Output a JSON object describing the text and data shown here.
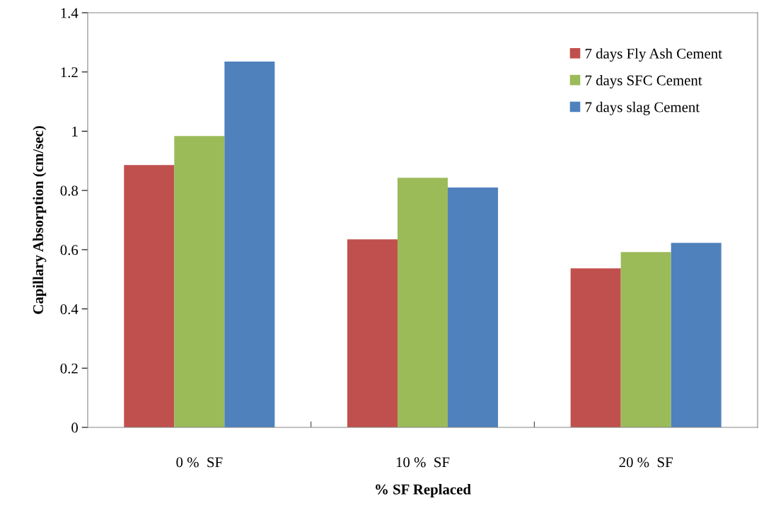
{
  "chart_data": {
    "type": "bar",
    "xlabel": "% SF Replaced",
    "ylabel": "Capillary Absorption (cm/sec)",
    "categories": [
      "0 %  SF",
      "10 %  SF",
      "20 %  SF"
    ],
    "series": [
      {
        "name": "7 days Fly Ash Cement",
        "color": "#c0504d",
        "values": [
          0.886,
          0.635,
          0.537
        ]
      },
      {
        "name": "7 days SFC Cement",
        "color": "#9bbb59",
        "values": [
          0.984,
          0.843,
          0.592
        ]
      },
      {
        "name": "7 days slag Cement",
        "color": "#4f81bd",
        "values": [
          1.235,
          0.81,
          0.623
        ]
      }
    ],
    "ylim": [
      0,
      1.4
    ],
    "yticks": [
      0,
      0.2,
      0.4,
      0.6,
      0.8,
      1,
      1.2,
      1.4
    ],
    "grid": false,
    "legend": "top right"
  }
}
